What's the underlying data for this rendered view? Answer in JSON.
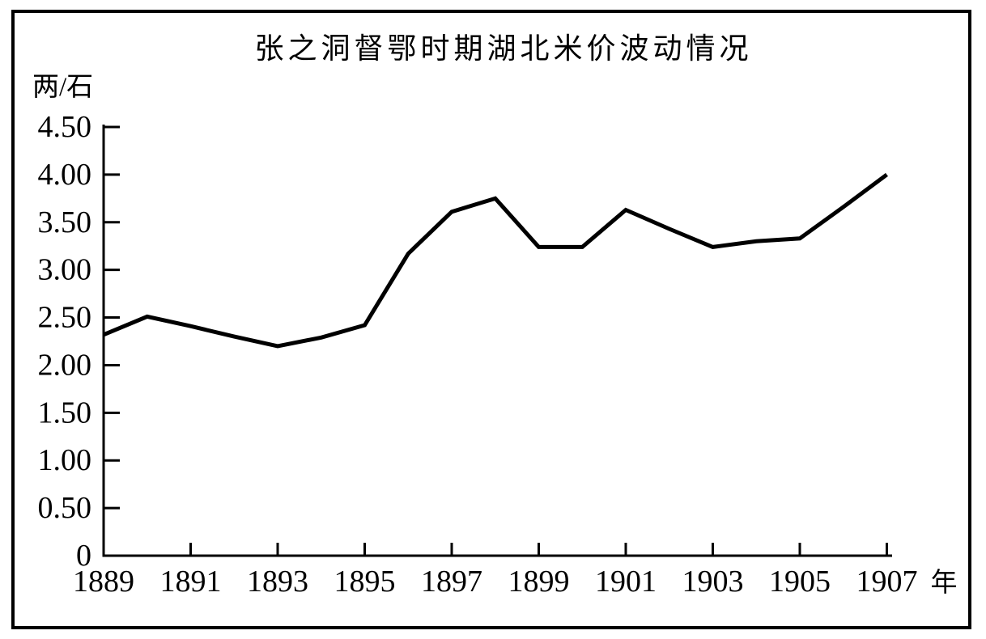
{
  "figure": {
    "title": "张之洞督鄂时期湖北米价波动情况",
    "y_unit_label": "两/石",
    "x_unit_label": "年"
  },
  "chart_data": {
    "type": "line",
    "title": "张之洞督鄂时期湖北米价波动情况",
    "ylabel": "两/石",
    "xlabel": "年",
    "x": [
      1889,
      1890,
      1891,
      1892,
      1893,
      1894,
      1895,
      1896,
      1897,
      1898,
      1899,
      1900,
      1901,
      1902,
      1903,
      1904,
      1905,
      1906,
      1907
    ],
    "series": [
      {
        "name": "湖北米价",
        "values": [
          2.32,
          2.51,
          2.41,
          2.3,
          2.2,
          2.29,
          2.42,
          3.17,
          3.61,
          3.75,
          3.24,
          3.24,
          3.63,
          3.43,
          3.24,
          3.3,
          3.33,
          3.66,
          4.0
        ]
      }
    ],
    "xlim": [
      1889,
      1907
    ],
    "ylim": [
      0,
      4.5
    ],
    "x_tick_values": [
      1889,
      1891,
      1893,
      1895,
      1897,
      1899,
      1901,
      1903,
      1905,
      1907
    ],
    "x_tick_labels": [
      "1889",
      "1891",
      "1893",
      "1895",
      "1897",
      "1899",
      "1901",
      "1903",
      "1905",
      "1907"
    ],
    "y_tick_values": [
      0,
      0.5,
      1.0,
      1.5,
      2.0,
      2.5,
      3.0,
      3.5,
      4.0,
      4.5
    ],
    "y_tick_labels": [
      "0",
      "0.50",
      "1.00",
      "1.50",
      "2.00",
      "2.50",
      "3.00",
      "3.50",
      "4.00",
      "4.50"
    ],
    "grid": false,
    "legend": "none",
    "line_color": "#000000",
    "axis_color": "#000000",
    "background": "#ffffff"
  }
}
